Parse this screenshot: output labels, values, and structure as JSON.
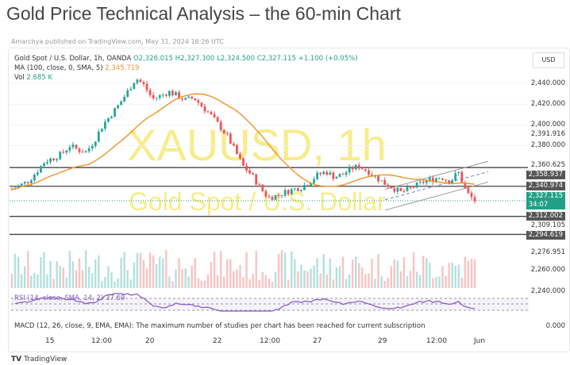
{
  "page": {
    "title": "Gold Price Technical Analysis – the 60-min Chart",
    "published": "Amarchya published on TradingView.com, May 31, 2024 16:26 UTC",
    "tradingview_logo": "TradingView"
  },
  "legend": {
    "symbol": "Gold Spot / U.S. Dollar, 1h, OANDA",
    "open": "O2,326.015",
    "high": "H2,327.300",
    "low": "L2,324.500",
    "close": "C2,327.115",
    "change": "+1.100 (+0.05%)",
    "ma_label": "MA (100, close, 0, SMA, 5)",
    "ma_value": "2,345.719",
    "vol_label": "Vol",
    "vol_value": "2.685 K"
  },
  "watermark": {
    "ticker": "XAUUSD, 1h",
    "name": "Gold Spot / U.S. Dollar"
  },
  "currency": "USD",
  "rsi": {
    "label": "RSI (14, close, SMA, 14, 2)",
    "value": "37.69"
  },
  "macd": {
    "label": "MACD (12, 26, close, 9, EMA, EMA): The maximum number of studies per chart has been reached for current subscription",
    "value": "0.000"
  },
  "colors": {
    "up": "#26a69a",
    "down": "#ef5350",
    "ma": "#f0932b",
    "rsi": "#7e57c2",
    "last": "#22a085"
  },
  "chart_data": {
    "type": "candlestick",
    "x_ticks": [
      "15",
      "12:00",
      "20",
      "22",
      "12:00",
      "27",
      "29",
      "12:00",
      "Jun"
    ],
    "y_ticks": [
      "2,440.000",
      "2,420.000",
      "2,400.000",
      "2,391.916",
      "2,380.000",
      "2,360.625",
      "2,309.105",
      "2,276.951",
      "2,260.000",
      "2,240.000"
    ],
    "horizontal_levels": [
      "2,358.937",
      "2,340.974",
      "2,312.002",
      "2,294.619"
    ],
    "last_price": "2,327.115",
    "countdown": "34:07",
    "ylim": [
      2230,
      2450
    ],
    "approx_closes": [
      2338,
      2342,
      2346,
      2355,
      2365,
      2368,
      2372,
      2380,
      2376,
      2374,
      2385,
      2400,
      2410,
      2420,
      2432,
      2445,
      2438,
      2425,
      2428,
      2432,
      2428,
      2424,
      2426,
      2418,
      2410,
      2400,
      2390,
      2375,
      2360,
      2352,
      2340,
      2330,
      2332,
      2335,
      2338,
      2340,
      2345,
      2352,
      2355,
      2350,
      2352,
      2358,
      2360,
      2356,
      2350,
      2344,
      2340,
      2335,
      2338,
      2342,
      2346,
      2348,
      2350,
      2345,
      2355,
      2335,
      2327
    ]
  }
}
